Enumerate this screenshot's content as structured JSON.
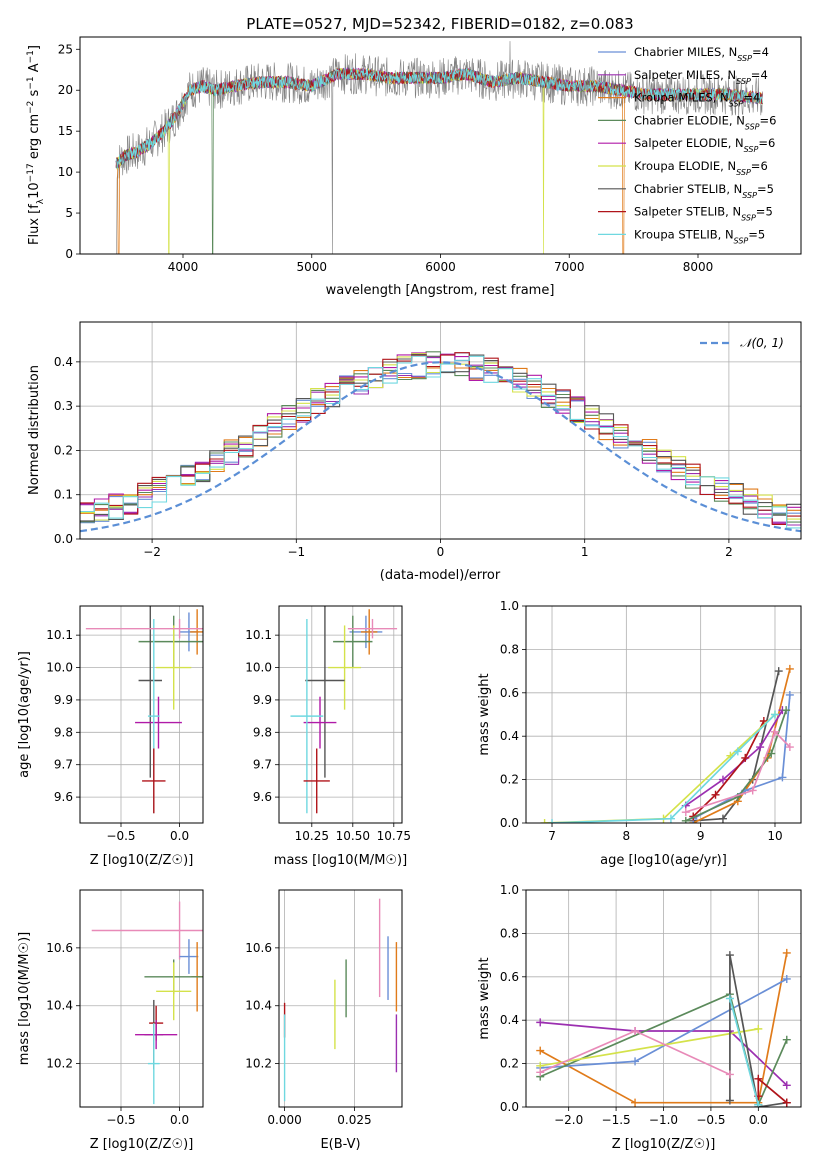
{
  "figure": {
    "title": "PLATE=0527, MJD=52342, FIBERID=0182, z=0.083"
  },
  "colors": {
    "Chabrier MILES": "#6a8fd6",
    "Salpeter MILES": "#9b2fb0",
    "Kroupa MILES": "#e07b1a",
    "Chabrier ELODIE": "#5b8a5b",
    "Salpeter ELODIE": "#b01aa8",
    "Kroupa ELODIE": "#d4e24a",
    "Chabrier STELIB": "#555555",
    "Salpeter STELIB": "#b0141a",
    "Kroupa STELIB": "#6fd8e0",
    "Kroupa STELIB alt": "#e88ab8",
    "gaussian": "#5b8fd6",
    "observed": "#808080"
  },
  "chart_data": [
    {
      "id": "spectrum",
      "type": "line",
      "xlabel": "wavelength [Angstrom, rest frame]",
      "ylabel": "Flux [f_λ10^-17 erg cm^-2 s^-1 A^-1]",
      "ylabel_parts": [
        "Flux [f",
        "λ",
        "10",
        "−17",
        " erg cm",
        "−2",
        " s",
        "−1",
        " A",
        "−1",
        "]"
      ],
      "xlim": [
        3200,
        8800
      ],
      "ylim": [
        0,
        26.5
      ],
      "xticks": [
        4000,
        5000,
        6000,
        7000,
        8000
      ],
      "yticks": [
        0,
        5,
        10,
        15,
        20,
        25
      ],
      "continuum": {
        "x": [
          3480,
          3550,
          3650,
          3750,
          3850,
          3950,
          4050,
          4150,
          4250,
          4400,
          4600,
          4800,
          5000,
          5200,
          5400,
          5600,
          5800,
          6000,
          6200,
          6400,
          6600,
          6800,
          7000,
          7200,
          7400,
          7600,
          7800,
          8000,
          8200,
          8500
        ],
        "y": [
          11,
          12,
          12.5,
          13.5,
          15,
          17,
          20,
          20.5,
          20,
          20.5,
          21,
          21,
          20.5,
          22,
          22,
          21.5,
          21.5,
          21.5,
          22,
          21,
          21.5,
          21,
          20.5,
          20.5,
          20,
          19.5,
          19.5,
          19.5,
          19.5,
          19
        ]
      },
      "legend": [
        {
          "name": "Chabrier MILES",
          "nssp": "4"
        },
        {
          "name": "Salpeter MILES",
          "nssp": "4"
        },
        {
          "name": "Kroupa MILES",
          "nssp": "4"
        },
        {
          "name": "Chabrier ELODIE",
          "nssp": "6"
        },
        {
          "name": "Salpeter ELODIE",
          "nssp": "6"
        },
        {
          "name": "Kroupa ELODIE",
          "nssp": "6"
        },
        {
          "name": "Chabrier STELIB",
          "nssp": "5"
        },
        {
          "name": "Salpeter STELIB",
          "nssp": "5"
        },
        {
          "name": "Kroupa STELIB",
          "nssp": "5"
        }
      ],
      "legend_prefix": "N",
      "legend_subscript": "SSP",
      "legend_position": "right"
    },
    {
      "id": "residual-histogram",
      "type": "bar",
      "xlabel": "(data-model)/error",
      "ylabel": "Normed distribution",
      "xlim": [
        -2.5,
        2.5
      ],
      "ylim": [
        0,
        0.49
      ],
      "xticks": [
        -2,
        -1,
        0,
        1,
        2
      ],
      "xticklabels": [
        "−2",
        "−1",
        "0",
        "1",
        "2"
      ],
      "yticks": [
        0.0,
        0.1,
        0.2,
        0.3,
        0.4
      ],
      "yticklabels": [
        "0.0",
        "0.1",
        "0.2",
        "0.3",
        "0.4"
      ],
      "bin_width": 0.1,
      "series_names": [
        "Chabrier MILES",
        "Salpeter MILES",
        "Kroupa MILES",
        "Chabrier ELODIE",
        "Salpeter ELODIE",
        "Kroupa ELODIE",
        "Chabrier STELIB",
        "Salpeter STELIB",
        "Kroupa STELIB"
      ],
      "legend": [
        {
          "name": "𝒩(0, 1)",
          "style": "dashed"
        }
      ],
      "legend_position": "top-right",
      "grid": true
    },
    {
      "id": "age-vs-Z",
      "type": "scatter",
      "xlabel": "Z [log10(Z/Z☉)]",
      "ylabel": "age [log10(age/yr)]",
      "xlim": [
        -0.85,
        0.2
      ],
      "ylim": [
        9.52,
        10.19
      ],
      "xticks": [
        -0.5,
        0.0
      ],
      "xticklabels": [
        "−0.5",
        "0.0"
      ],
      "yticks": [
        9.6,
        9.7,
        9.8,
        9.9,
        10.0,
        10.1
      ],
      "yticklabels": [
        "9.6",
        "9.7",
        "9.8",
        "9.9",
        "10.0",
        "10.1"
      ],
      "points": [
        {
          "series": "Chabrier MILES",
          "x": 0.08,
          "y": 10.11,
          "xerr": 0.08,
          "yerr": 0.06
        },
        {
          "series": "Kroupa MILES",
          "x": 0.15,
          "y": 10.11,
          "xerr": 0.06,
          "yerr": 0.07
        },
        {
          "series": "Chabrier ELODIE",
          "x": -0.05,
          "y": 10.08,
          "xerr": 0.3,
          "yerr": 0.08
        },
        {
          "series": "Kroupa ELODIE",
          "x": -0.05,
          "y": 10.0,
          "xerr": 0.15,
          "yerr": 0.13
        },
        {
          "series": "Chabrier STELIB",
          "x": -0.25,
          "y": 9.96,
          "xerr": 0.1,
          "yerr": 0.3
        },
        {
          "series": "Salpeter ELODIE",
          "x": -0.18,
          "y": 9.83,
          "xerr": 0.2,
          "yerr": 0.08
        },
        {
          "series": "Kroupa STELIB",
          "x": -0.22,
          "y": 9.85,
          "xerr": 0.05,
          "yerr": 0.3
        },
        {
          "series": "Salpeter STELIB",
          "x": -0.22,
          "y": 9.65,
          "xerr": 0.1,
          "yerr": 0.1
        },
        {
          "series": "Kroupa STELIB alt",
          "x": 0.0,
          "y": 10.12,
          "xerr": 0.8,
          "yerr": 0.03
        }
      ],
      "grid": true
    },
    {
      "id": "age-vs-mass",
      "type": "scatter",
      "xlabel": "mass [log10(M/M☉)]",
      "ylabel": "",
      "xlim": [
        10.05,
        10.8
      ],
      "ylim": [
        9.52,
        10.19
      ],
      "xticks": [
        10.25,
        10.5,
        10.75
      ],
      "xticklabels": [
        "10.25",
        "10.50",
        "10.75"
      ],
      "yticks": [
        9.6,
        9.7,
        9.8,
        9.9,
        10.0,
        10.1
      ],
      "yticklabels": [
        "9.6",
        "9.7",
        "9.8",
        "9.9",
        "10.0",
        "10.1"
      ],
      "points": [
        {
          "series": "Chabrier MILES",
          "x": 10.58,
          "y": 10.11,
          "xerr": 0.1,
          "yerr": 0.05
        },
        {
          "series": "Kroupa MILES",
          "x": 10.6,
          "y": 10.11,
          "xerr": 0.05,
          "yerr": 0.07
        },
        {
          "series": "Chabrier ELODIE",
          "x": 10.5,
          "y": 10.08,
          "xerr": 0.12,
          "yerr": 0.08
        },
        {
          "series": "Kroupa ELODIE",
          "x": 10.45,
          "y": 10.0,
          "xerr": 0.1,
          "yerr": 0.13
        },
        {
          "series": "Chabrier STELIB",
          "x": 10.33,
          "y": 9.96,
          "xerr": 0.12,
          "yerr": 0.3
        },
        {
          "series": "Salpeter ELODIE",
          "x": 10.3,
          "y": 9.83,
          "xerr": 0.1,
          "yerr": 0.08
        },
        {
          "series": "Kroupa STELIB",
          "x": 10.22,
          "y": 9.85,
          "xerr": 0.1,
          "yerr": 0.3
        },
        {
          "series": "Salpeter STELIB",
          "x": 10.28,
          "y": 9.65,
          "xerr": 0.08,
          "yerr": 0.1
        },
        {
          "series": "Kroupa STELIB alt",
          "x": 10.62,
          "y": 10.12,
          "xerr": 0.15,
          "yerr": 0.03
        }
      ],
      "grid": true
    },
    {
      "id": "massweight-vs-age",
      "type": "line",
      "xlabel": "age  [log10(age/yr)]",
      "ylabel": "mass weight",
      "xlim": [
        6.65,
        10.35
      ],
      "ylim": [
        0,
        1.0
      ],
      "xticks": [
        7,
        8,
        9,
        10
      ],
      "yticks": [
        0.0,
        0.2,
        0.4,
        0.6,
        0.8,
        1.0
      ],
      "yticklabels": [
        "0.0",
        "0.2",
        "0.4",
        "0.6",
        "0.8",
        "1.0"
      ],
      "series": [
        {
          "name": "Chabrier STELIB",
          "x": [
            8.9,
            9.3,
            9.7,
            10.05
          ],
          "y": [
            0.01,
            0.02,
            0.2,
            0.7
          ]
        },
        {
          "name": "Kroupa MILES",
          "x": [
            8.9,
            9.5,
            9.9,
            10.2
          ],
          "y": [
            0.0,
            0.1,
            0.3,
            0.71
          ]
        },
        {
          "name": "Chabrier MILES",
          "x": [
            8.9,
            9.6,
            10.1,
            10.2
          ],
          "y": [
            0.02,
            0.15,
            0.21,
            0.59
          ]
        },
        {
          "name": "Salpeter MILES",
          "x": [
            8.8,
            9.3,
            9.8,
            10.1
          ],
          "y": [
            0.08,
            0.2,
            0.35,
            0.52
          ]
        },
        {
          "name": "Salpeter STELIB",
          "x": [
            8.9,
            9.2,
            9.6,
            9.85
          ],
          "y": [
            0.03,
            0.13,
            0.3,
            0.47
          ]
        },
        {
          "name": "Kroupa ELODIE",
          "x": [
            6.9,
            8.5,
            9.4,
            10.0
          ],
          "y": [
            0.0,
            0.02,
            0.31,
            0.5
          ]
        },
        {
          "name": "Kroupa STELIB",
          "x": [
            7.0,
            8.6,
            9.5,
            10.0
          ],
          "y": [
            0.0,
            0.02,
            0.33,
            0.5
          ]
        },
        {
          "name": "Chabrier ELODIE",
          "x": [
            8.8,
            9.5,
            9.95,
            10.15
          ],
          "y": [
            0.01,
            0.12,
            0.32,
            0.52
          ]
        },
        {
          "name": "Kroupa STELIB alt",
          "x": [
            8.8,
            9.7,
            10.0,
            10.2
          ],
          "y": [
            0.05,
            0.15,
            0.42,
            0.35
          ]
        }
      ],
      "grid": true
    },
    {
      "id": "mass-vs-Z",
      "type": "scatter",
      "xlabel": "Z [log10(Z/Z☉)]",
      "ylabel": "mass [log10(M/M☉)]",
      "xlim": [
        -0.85,
        0.2
      ],
      "ylim": [
        10.05,
        10.8
      ],
      "xticks": [
        -0.5,
        0.0
      ],
      "xticklabels": [
        "−0.5",
        "0.0"
      ],
      "yticks": [
        10.2,
        10.4,
        10.6
      ],
      "yticklabels": [
        "10.2",
        "10.4",
        "10.6"
      ],
      "points": [
        {
          "series": "Kroupa STELIB alt",
          "x": 0.0,
          "y": 10.66,
          "xerr": 0.75,
          "yerr": 0.1
        },
        {
          "series": "Chabrier MILES",
          "x": 0.08,
          "y": 10.57,
          "xerr": 0.08,
          "yerr": 0.06
        },
        {
          "series": "Kroupa MILES",
          "x": 0.15,
          "y": 10.5,
          "xerr": 0.05,
          "yerr": 0.12
        },
        {
          "series": "Chabrier ELODIE",
          "x": -0.05,
          "y": 10.5,
          "xerr": 0.25,
          "yerr": 0.06
        },
        {
          "series": "Kroupa ELODIE",
          "x": -0.05,
          "y": 10.45,
          "xerr": 0.15,
          "yerr": 0.1
        },
        {
          "series": "Chabrier STELIB",
          "x": -0.22,
          "y": 10.3,
          "xerr": 0.08,
          "yerr": 0.12
        },
        {
          "series": "Salpeter STELIB",
          "x": -0.2,
          "y": 10.34,
          "xerr": 0.06,
          "yerr": 0.06
        },
        {
          "series": "Salpeter ELODIE",
          "x": -0.2,
          "y": 10.3,
          "xerr": 0.18,
          "yerr": 0.05
        },
        {
          "series": "Kroupa STELIB",
          "x": -0.22,
          "y": 10.2,
          "xerr": 0.05,
          "yerr": 0.14
        }
      ],
      "grid": true
    },
    {
      "id": "mass-vs-EBV",
      "type": "scatter",
      "xlabel": "E(B-V)",
      "ylabel": "",
      "xlim": [
        -0.002,
        0.042
      ],
      "ylim": [
        10.05,
        10.8
      ],
      "xticks": [
        0.0,
        0.025
      ],
      "xticklabels": [
        "0.000",
        "0.025"
      ],
      "yticks": [
        10.2,
        10.4,
        10.6
      ],
      "yticklabels": [
        "10.2",
        "10.4",
        "10.6"
      ],
      "points": [
        {
          "series": "Salpeter STELIB",
          "x": 0.0,
          "y": 10.35,
          "xerr": 0.0,
          "yerr": 0.06
        },
        {
          "series": "Kroupa STELIB",
          "x": 0.0,
          "y": 10.22,
          "xerr": 0.0,
          "yerr": 0.15
        },
        {
          "series": "Kroupa ELODIE",
          "x": 0.018,
          "y": 10.37,
          "xerr": 0.0,
          "yerr": 0.12
        },
        {
          "series": "Chabrier ELODIE",
          "x": 0.022,
          "y": 10.46,
          "xerr": 0.0,
          "yerr": 0.1
        },
        {
          "series": "Kroupa STELIB alt",
          "x": 0.034,
          "y": 10.6,
          "xerr": 0.0,
          "yerr": 0.17
        },
        {
          "series": "Chabrier MILES",
          "x": 0.037,
          "y": 10.53,
          "xerr": 0.0,
          "yerr": 0.11
        },
        {
          "series": "Kroupa MILES",
          "x": 0.04,
          "y": 10.5,
          "xerr": 0.0,
          "yerr": 0.12
        },
        {
          "series": "Salpeter MILES",
          "x": 0.04,
          "y": 10.27,
          "xerr": 0.0,
          "yerr": 0.1
        }
      ],
      "grid": true
    },
    {
      "id": "massweight-vs-Z",
      "type": "line",
      "xlabel": "Z [log10(Z/Z☉)]",
      "ylabel": "mass weight",
      "xlim": [
        -2.45,
        0.45
      ],
      "ylim": [
        0,
        1.0
      ],
      "xticks": [
        -2.0,
        -1.5,
        -1.0,
        -0.5,
        0.0
      ],
      "xticklabels": [
        "−2.0",
        "−1.5",
        "−1.0",
        "−0.5",
        "0.0"
      ],
      "yticks": [
        0.0,
        0.2,
        0.4,
        0.6,
        0.8,
        1.0
      ],
      "yticklabels": [
        "0.0",
        "0.2",
        "0.4",
        "0.6",
        "0.8",
        "1.0"
      ],
      "series": [
        {
          "name": "Salpeter MILES",
          "x": [
            -2.3,
            -1.3,
            -0.3,
            0.3
          ],
          "y": [
            0.39,
            0.35,
            0.35,
            0.1
          ]
        },
        {
          "name": "Kroupa MILES",
          "x": [
            -2.3,
            -1.3,
            0.0,
            0.3
          ],
          "y": [
            0.26,
            0.02,
            0.02,
            0.71
          ]
        },
        {
          "name": "Chabrier MILES",
          "x": [
            -2.3,
            -1.3,
            0.3
          ],
          "y": [
            0.18,
            0.21,
            0.59
          ]
        },
        {
          "name": "Chabrier ELODIE",
          "x": [
            -2.3,
            -0.3,
            0.0,
            0.3
          ],
          "y": [
            0.14,
            0.52,
            0.01,
            0.31
          ]
        },
        {
          "name": "Kroupa ELODIE",
          "x": [
            -2.3,
            0.0
          ],
          "y": [
            0.19,
            0.36
          ]
        },
        {
          "name": "Chabrier STELIB",
          "x": [
            -0.3,
            -0.3,
            0.0,
            0.3
          ],
          "y": [
            0.03,
            0.7,
            0.0,
            0.02
          ]
        },
        {
          "name": "Salpeter STELIB",
          "x": [
            0.0,
            0.0,
            0.3
          ],
          "y": [
            0.05,
            0.13,
            0.02
          ]
        },
        {
          "name": "Kroupa STELIB",
          "x": [
            -0.3,
            0.0
          ],
          "y": [
            0.5,
            0.01
          ]
        },
        {
          "name": "Kroupa STELIB alt",
          "x": [
            -2.3,
            -1.3,
            -0.3
          ],
          "y": [
            0.16,
            0.35,
            0.15
          ]
        }
      ],
      "grid": true
    }
  ]
}
